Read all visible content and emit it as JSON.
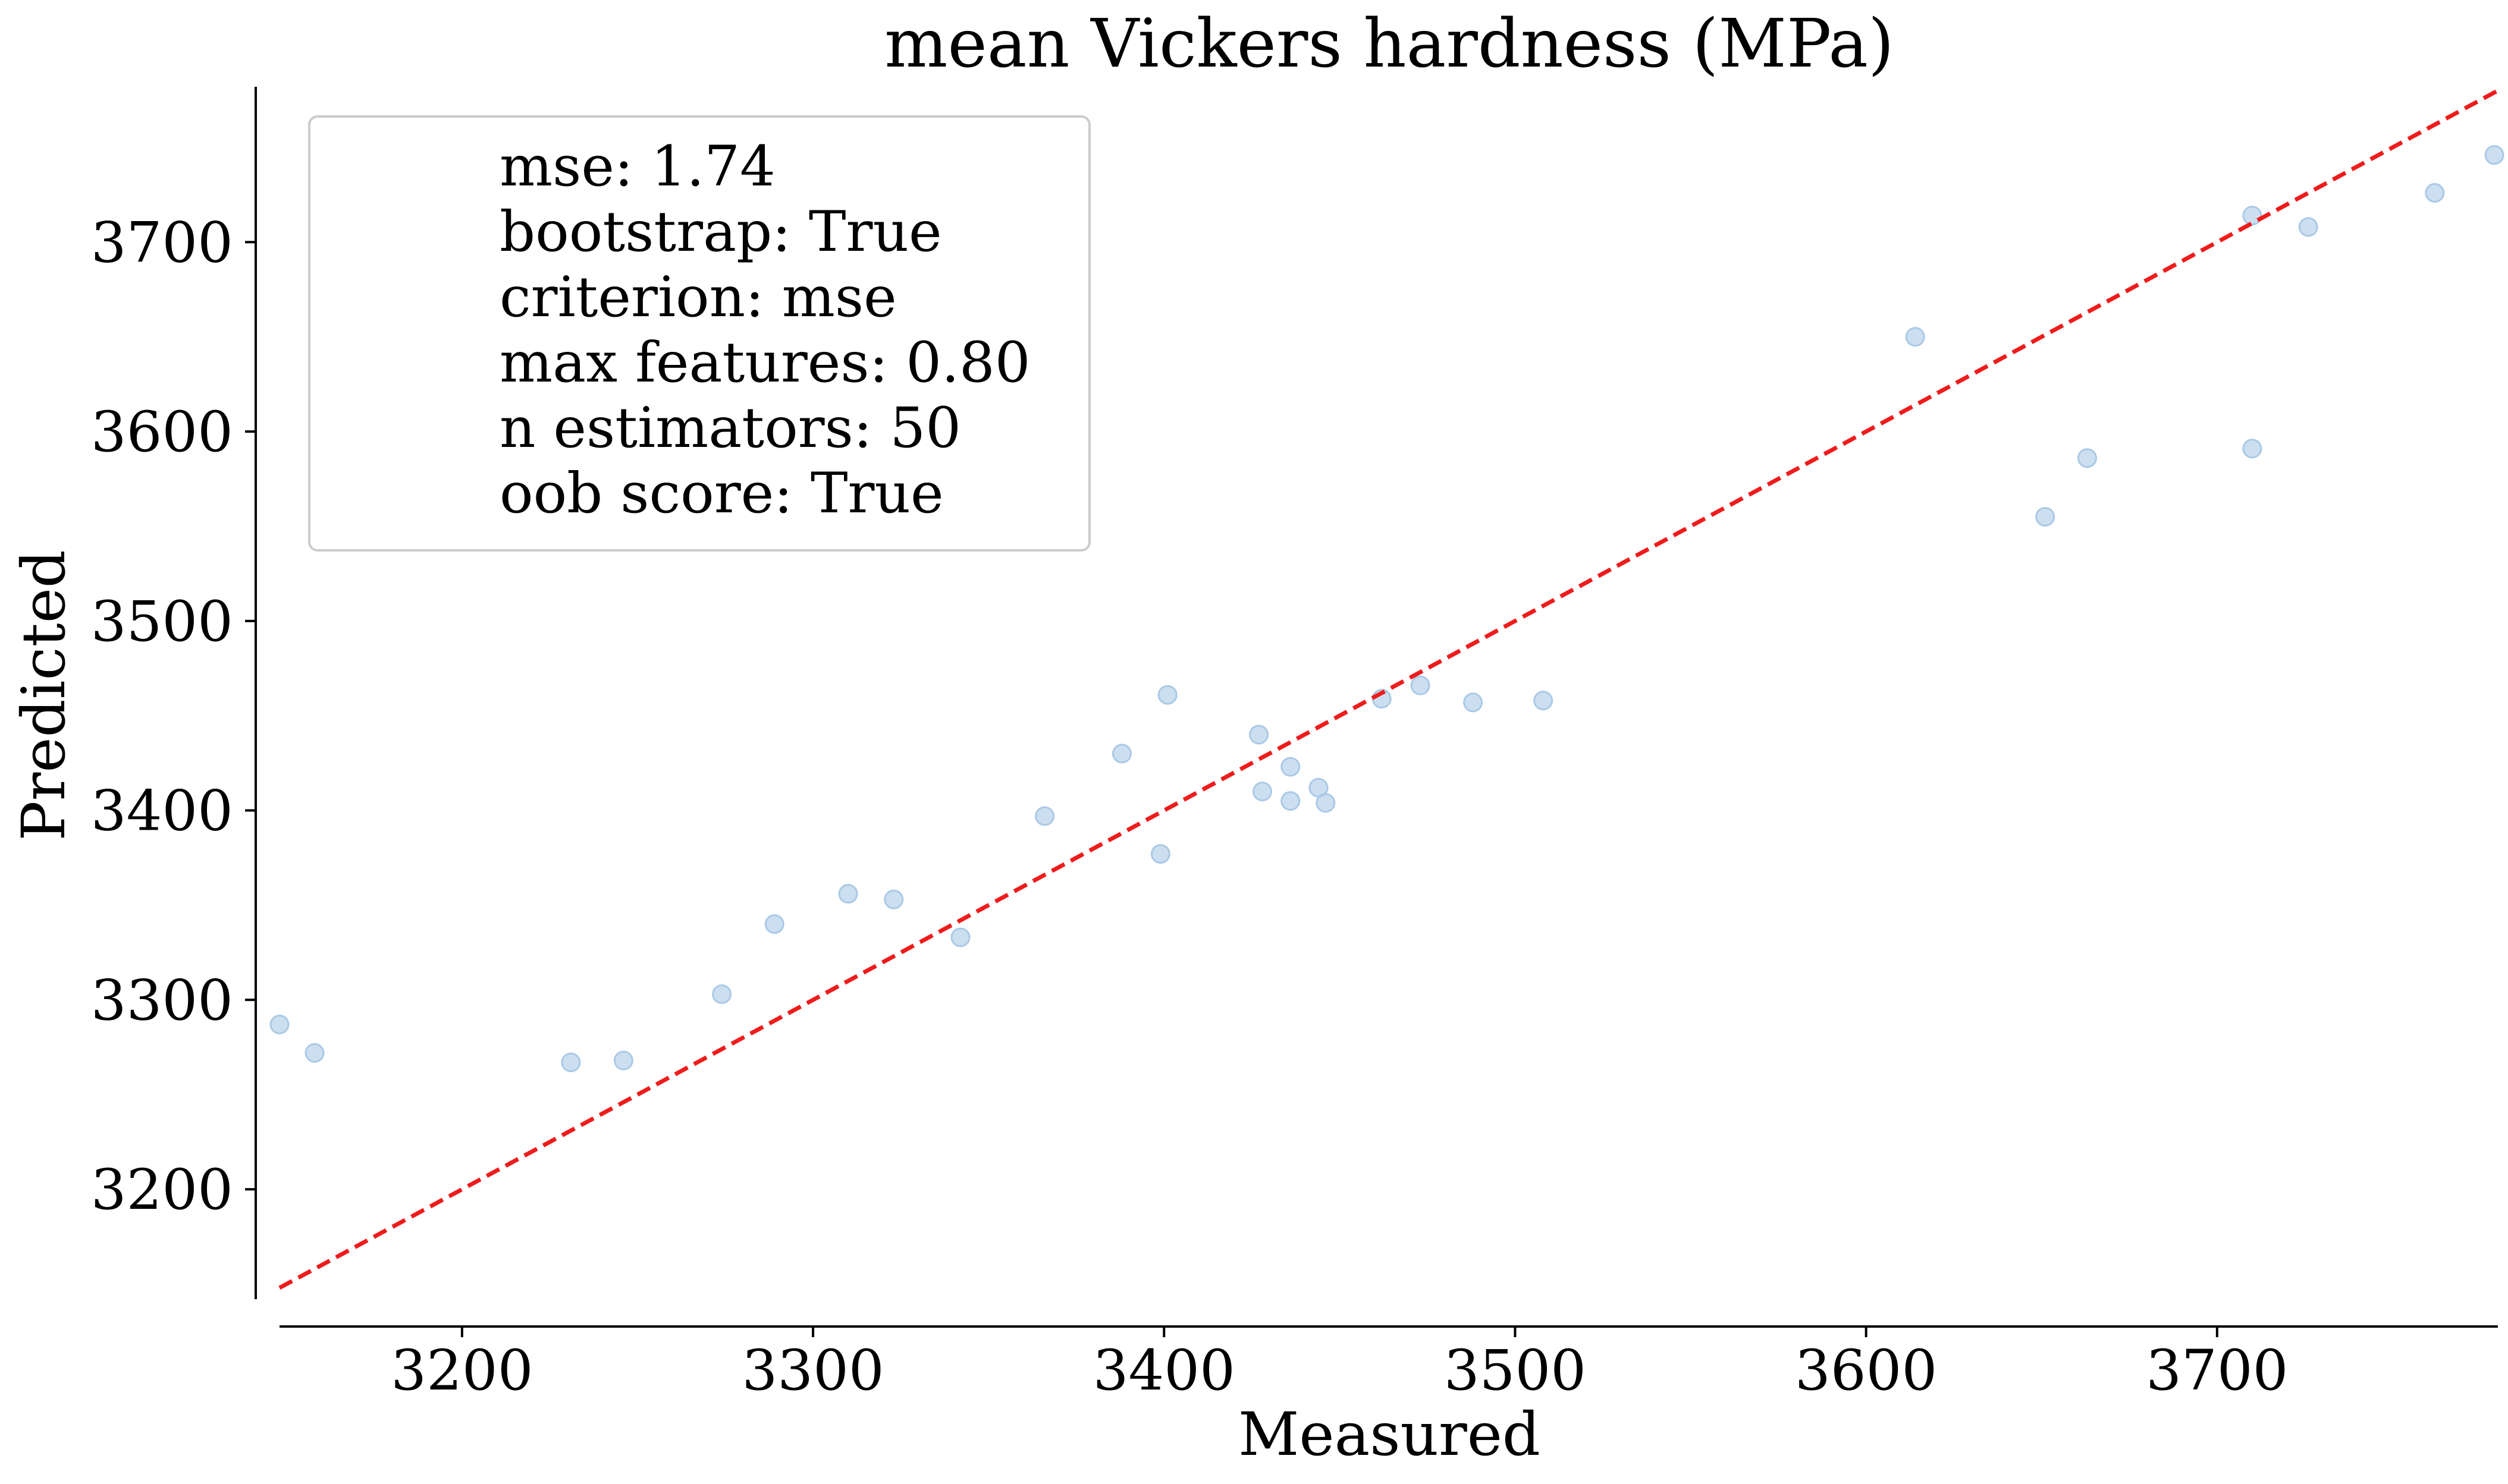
{
  "chart_data": {
    "type": "scatter",
    "title": "mean Vickers hardness (MPa)",
    "xlabel": "Measured",
    "ylabel": "Predicted",
    "xlim": [
      3148,
      3780
    ],
    "ylim": [
      3142,
      3782
    ],
    "x_ticks": [
      3200,
      3300,
      3400,
      3500,
      3600,
      3700
    ],
    "y_ticks": [
      3200,
      3300,
      3400,
      3500,
      3600,
      3700
    ],
    "grid": false,
    "legend_position": "top-left",
    "annotation_lines": [
      "mse: 1.74",
      "bootstrap: True",
      "criterion: mse",
      "max features: 0.80",
      "n estimators: 50",
      "oob score: True"
    ],
    "colors": {
      "points": "#aac9e6",
      "diagonal": "#ee1c1c",
      "axes": "#000000"
    },
    "series": [
      {
        "x": [
          3148,
          3158,
          3231,
          3246,
          3274,
          3289,
          3310,
          3323,
          3342,
          3366,
          3388,
          3399,
          3401,
          3427,
          3428,
          3436,
          3436,
          3444,
          3446,
          3462,
          3473,
          3488,
          3508,
          3614,
          3651,
          3663,
          3710,
          3710,
          3726,
          3762,
          3779
        ],
        "y": [
          3287,
          3272,
          3267,
          3268,
          3303,
          3340,
          3356,
          3353,
          3333,
          3397,
          3430,
          3377,
          3461,
          3440,
          3410,
          3423,
          3405,
          3412,
          3404,
          3459,
          3466,
          3457,
          3458,
          3650,
          3555,
          3586,
          3714,
          3591,
          3708,
          3726,
          3746
        ]
      }
    ],
    "reference_line": {
      "x": [
        3148,
        3780
      ],
      "y": [
        3148,
        3780
      ]
    }
  }
}
